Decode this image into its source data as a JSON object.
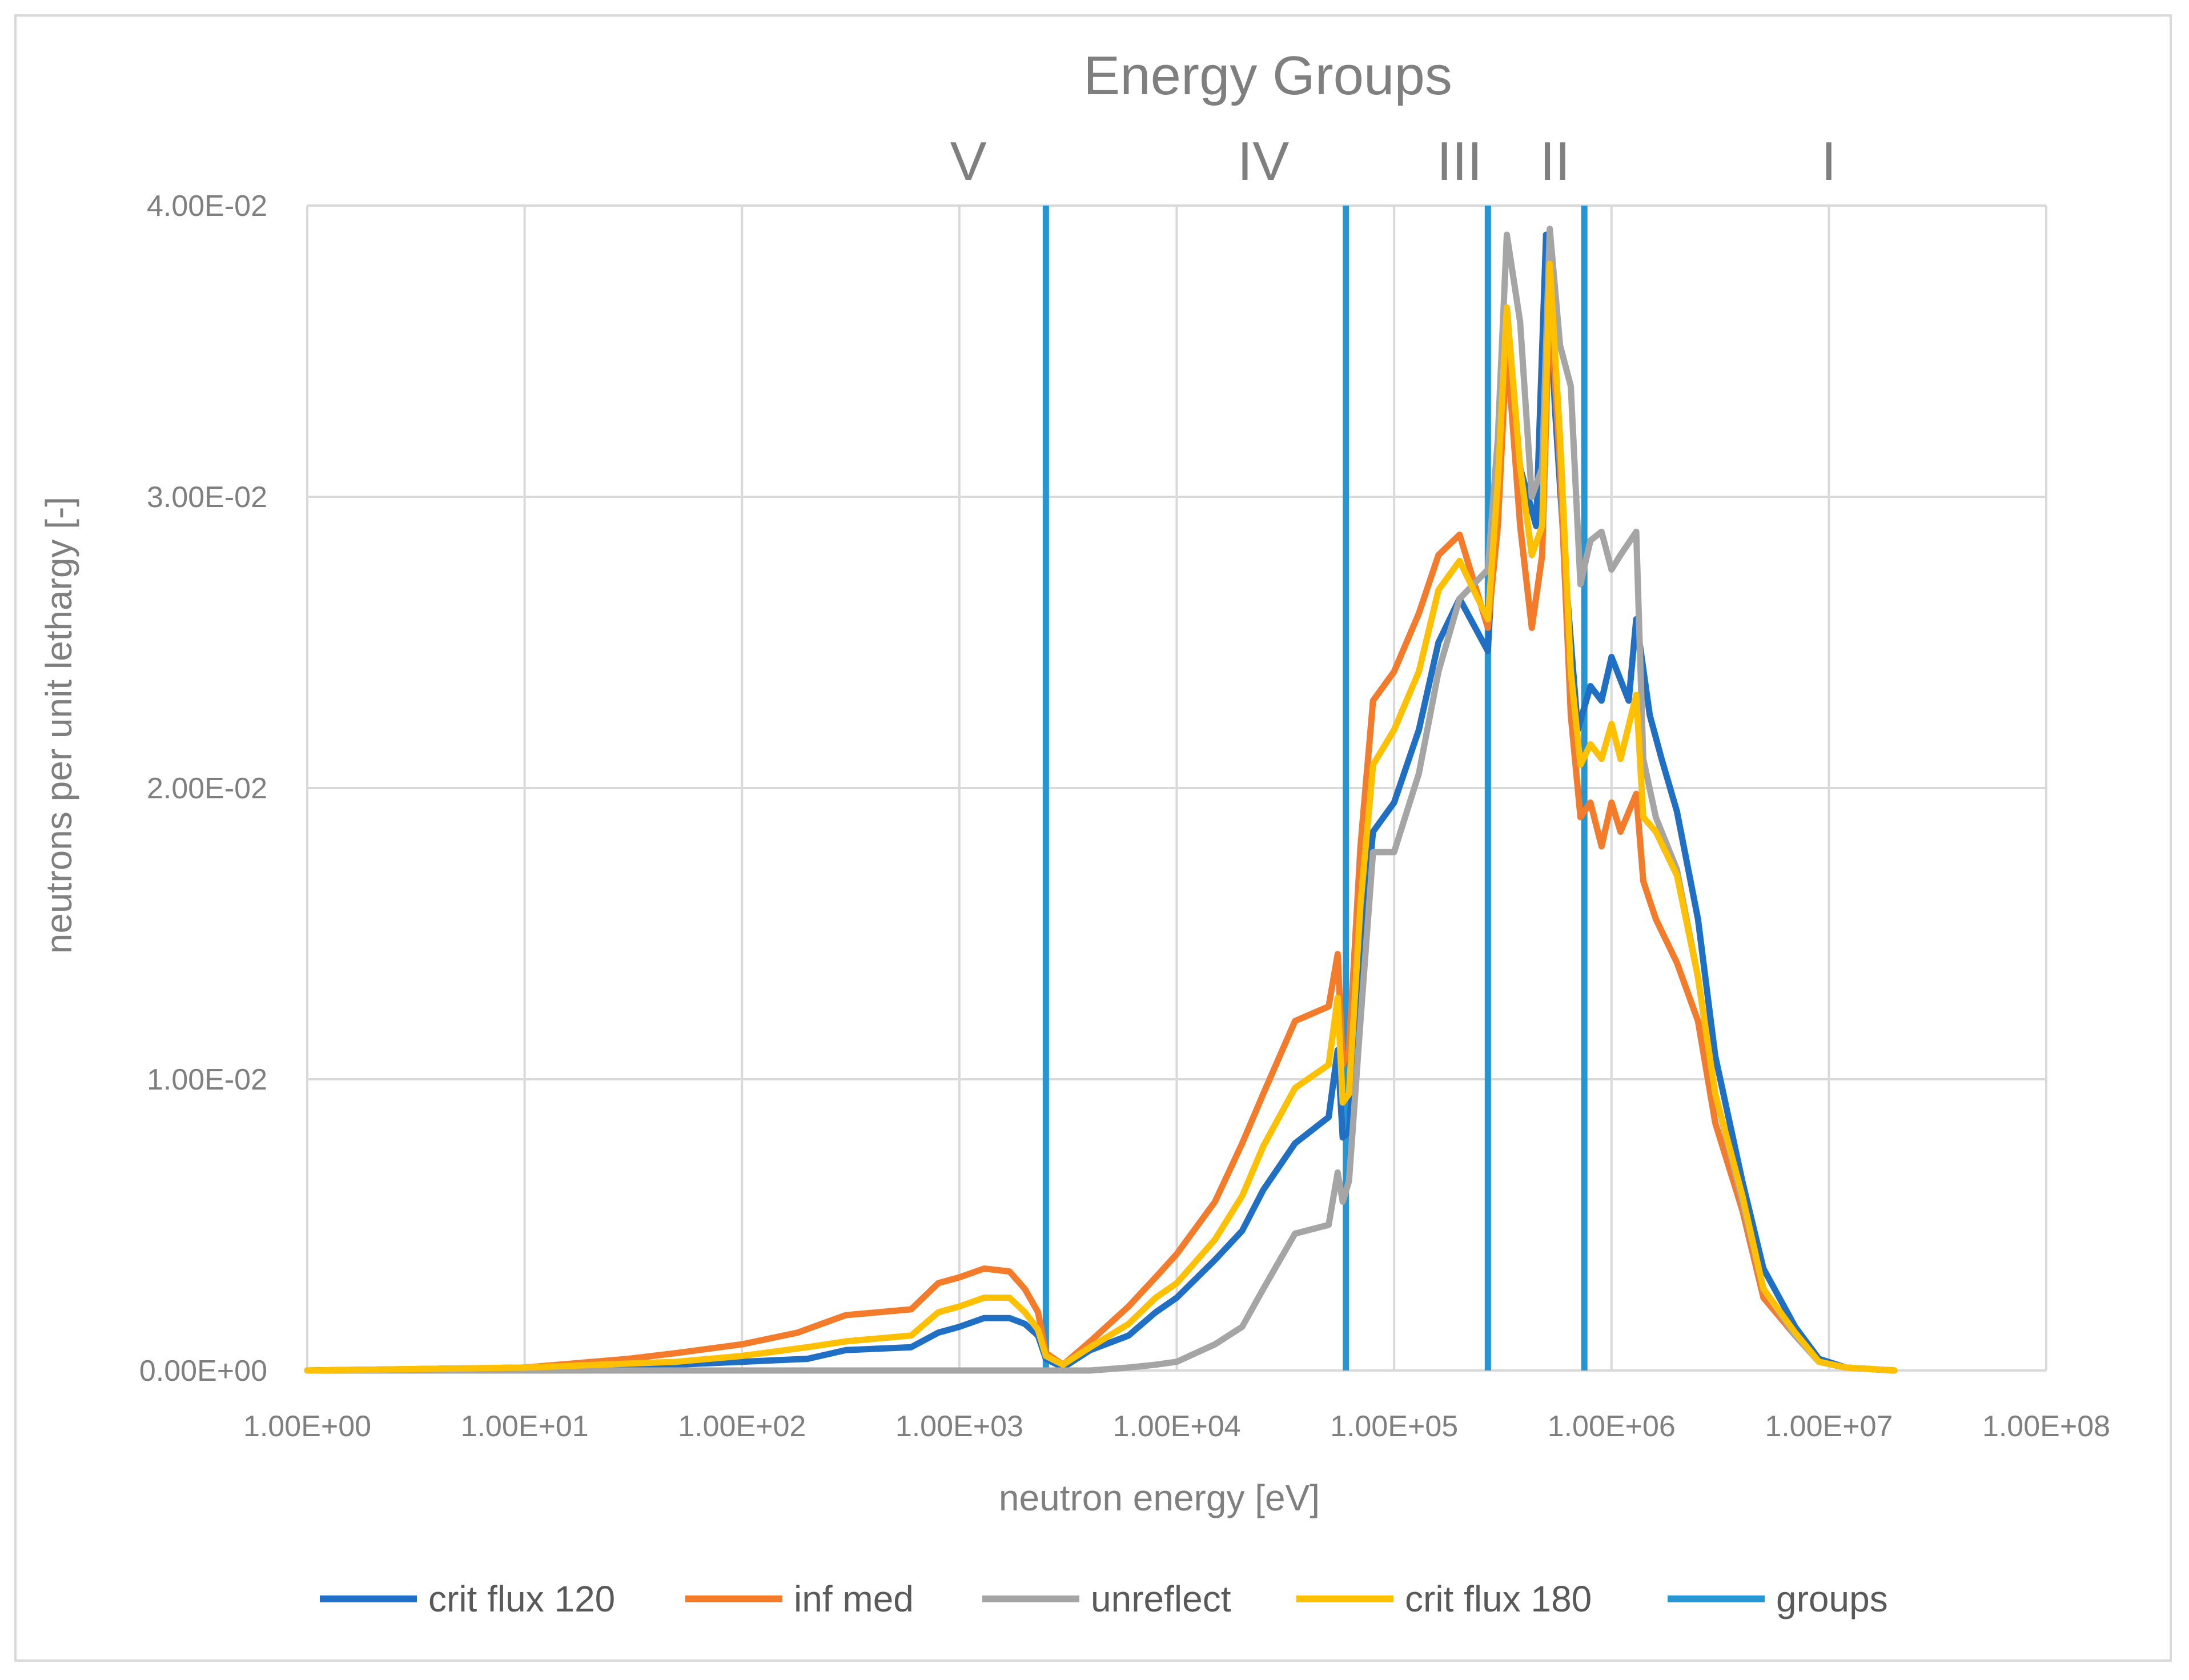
{
  "chart_data": {
    "type": "line",
    "title": "Energy Groups",
    "xlabel": "neutron energy [eV]",
    "ylabel": "neutrons per unit lethargy [-]",
    "xscale": "log",
    "xlim": [
      1,
      100000000
    ],
    "ylim": [
      0,
      0.04
    ],
    "grid": true,
    "legend_position": "bottom",
    "x_tick_labels": [
      "1.00E+00",
      "1.00E+01",
      "1.00E+02",
      "1.00E+03",
      "1.00E+04",
      "1.00E+05",
      "1.00E+06",
      "1.00E+07",
      "1.00E+08"
    ],
    "x_tick_values": [
      1,
      10,
      100,
      1000,
      10000,
      100000,
      1000000,
      10000000,
      100000000
    ],
    "y_tick_labels": [
      "0.00E+00",
      "1.00E-02",
      "2.00E-02",
      "3.00E-02",
      "4.00E-02"
    ],
    "y_tick_values": [
      0,
      0.01,
      0.02,
      0.03,
      0.04
    ],
    "group_labels": [
      {
        "label": "V",
        "center": 1100
      },
      {
        "label": "IV",
        "center": 25000
      },
      {
        "label": "III",
        "center": 200000
      },
      {
        "label": "II",
        "center": 550000
      },
      {
        "label": "I",
        "center": 10000000
      }
    ],
    "group_boundaries": [
      2500,
      60000,
      270000,
      750000
    ],
    "series": [
      {
        "name": "crit flux 120",
        "color": "#1f6fc4",
        "points": [
          [
            1,
            0
          ],
          [
            10,
            0.0001
          ],
          [
            50,
            0.0002
          ],
          [
            100,
            0.0003
          ],
          [
            200,
            0.0004
          ],
          [
            300,
            0.0007
          ],
          [
            600,
            0.0008
          ],
          [
            800,
            0.0013
          ],
          [
            1000,
            0.0015
          ],
          [
            1300,
            0.0018
          ],
          [
            1700,
            0.0018
          ],
          [
            2000,
            0.0016
          ],
          [
            2300,
            0.0012
          ],
          [
            2500,
            0.0004
          ],
          [
            3000,
            0.0001
          ],
          [
            4000,
            0.0007
          ],
          [
            6000,
            0.0012
          ],
          [
            8000,
            0.002
          ],
          [
            10000,
            0.0025
          ],
          [
            15000,
            0.0038
          ],
          [
            20000,
            0.0048
          ],
          [
            25000,
            0.0062
          ],
          [
            35000,
            0.0078
          ],
          [
            50000,
            0.0087
          ],
          [
            55000,
            0.011
          ],
          [
            58000,
            0.008
          ],
          [
            62000,
            0.0082
          ],
          [
            70000,
            0.014
          ],
          [
            80000,
            0.0185
          ],
          [
            100000,
            0.0195
          ],
          [
            130000,
            0.022
          ],
          [
            160000,
            0.025
          ],
          [
            200000,
            0.0265
          ],
          [
            270000,
            0.0247
          ],
          [
            300000,
            0.031
          ],
          [
            330000,
            0.0355
          ],
          [
            380000,
            0.031
          ],
          [
            450000,
            0.029
          ],
          [
            500000,
            0.039
          ],
          [
            550000,
            0.033
          ],
          [
            620000,
            0.027
          ],
          [
            700000,
            0.022
          ],
          [
            800000,
            0.0235
          ],
          [
            900000,
            0.023
          ],
          [
            1000000,
            0.0245
          ],
          [
            1200000,
            0.023
          ],
          [
            1300000,
            0.0258
          ],
          [
            1500000,
            0.0225
          ],
          [
            1700000,
            0.021
          ],
          [
            2000000,
            0.0192
          ],
          [
            2500000,
            0.0155
          ],
          [
            3000000,
            0.0108
          ],
          [
            4000000,
            0.0065
          ],
          [
            5000000,
            0.0035
          ],
          [
            7000000,
            0.0015
          ],
          [
            9000000,
            0.0004
          ],
          [
            12000000,
            0.0001
          ],
          [
            20000000,
            0
          ]
        ]
      },
      {
        "name": "inf med",
        "color": "#f47b2a",
        "points": [
          [
            1,
            0
          ],
          [
            10,
            0.0001
          ],
          [
            30,
            0.0004
          ],
          [
            50,
            0.0006
          ],
          [
            100,
            0.0009
          ],
          [
            180,
            0.0013
          ],
          [
            300,
            0.0019
          ],
          [
            600,
            0.0021
          ],
          [
            800,
            0.003
          ],
          [
            1000,
            0.0032
          ],
          [
            1300,
            0.0035
          ],
          [
            1700,
            0.0034
          ],
          [
            2000,
            0.0028
          ],
          [
            2300,
            0.002
          ],
          [
            2500,
            0.0006
          ],
          [
            3000,
            0.0002
          ],
          [
            4000,
            0.001
          ],
          [
            6000,
            0.0022
          ],
          [
            8000,
            0.0032
          ],
          [
            10000,
            0.004
          ],
          [
            15000,
            0.0058
          ],
          [
            20000,
            0.0078
          ],
          [
            25000,
            0.0095
          ],
          [
            35000,
            0.012
          ],
          [
            50000,
            0.0125
          ],
          [
            55000,
            0.0143
          ],
          [
            58000,
            0.0105
          ],
          [
            62000,
            0.011
          ],
          [
            70000,
            0.018
          ],
          [
            80000,
            0.023
          ],
          [
            100000,
            0.024
          ],
          [
            130000,
            0.026
          ],
          [
            160000,
            0.028
          ],
          [
            200000,
            0.0287
          ],
          [
            270000,
            0.0255
          ],
          [
            300000,
            0.029
          ],
          [
            330000,
            0.0352
          ],
          [
            380000,
            0.029
          ],
          [
            430000,
            0.0255
          ],
          [
            480000,
            0.028
          ],
          [
            520000,
            0.037
          ],
          [
            580000,
            0.031
          ],
          [
            650000,
            0.0225
          ],
          [
            720000,
            0.019
          ],
          [
            800000,
            0.0195
          ],
          [
            900000,
            0.018
          ],
          [
            1000000,
            0.0195
          ],
          [
            1100000,
            0.0185
          ],
          [
            1300000,
            0.0198
          ],
          [
            1400000,
            0.0168
          ],
          [
            1600000,
            0.0155
          ],
          [
            2000000,
            0.014
          ],
          [
            2500000,
            0.012
          ],
          [
            3000000,
            0.0085
          ],
          [
            4000000,
            0.0055
          ],
          [
            5000000,
            0.0025
          ],
          [
            7000000,
            0.0012
          ],
          [
            9000000,
            0.0003
          ],
          [
            12000000,
            0.0001
          ],
          [
            20000000,
            0
          ]
        ]
      },
      {
        "name": "unreflect",
        "color": "#a5a5a5",
        "points": [
          [
            1,
            0
          ],
          [
            100,
            0
          ],
          [
            1000,
            0
          ],
          [
            2500,
            0
          ],
          [
            3000,
            0
          ],
          [
            4000,
            0
          ],
          [
            6000,
            0.0001
          ],
          [
            8000,
            0.0002
          ],
          [
            10000,
            0.0003
          ],
          [
            15000,
            0.0009
          ],
          [
            20000,
            0.0015
          ],
          [
            25000,
            0.0028
          ],
          [
            35000,
            0.0047
          ],
          [
            50000,
            0.005
          ],
          [
            55000,
            0.0068
          ],
          [
            58000,
            0.0058
          ],
          [
            62000,
            0.0065
          ],
          [
            70000,
            0.012
          ],
          [
            80000,
            0.0178
          ],
          [
            100000,
            0.0178
          ],
          [
            130000,
            0.0205
          ],
          [
            160000,
            0.024
          ],
          [
            200000,
            0.0265
          ],
          [
            270000,
            0.0275
          ],
          [
            300000,
            0.032
          ],
          [
            330000,
            0.039
          ],
          [
            380000,
            0.036
          ],
          [
            430000,
            0.03
          ],
          [
            480000,
            0.031
          ],
          [
            520000,
            0.0392
          ],
          [
            580000,
            0.0352
          ],
          [
            650000,
            0.0338
          ],
          [
            720000,
            0.027
          ],
          [
            800000,
            0.0285
          ],
          [
            900000,
            0.0288
          ],
          [
            1000000,
            0.0275
          ],
          [
            1100000,
            0.028
          ],
          [
            1300000,
            0.0288
          ],
          [
            1400000,
            0.021
          ],
          [
            1600000,
            0.019
          ],
          [
            2000000,
            0.0172
          ],
          [
            2500000,
            0.0135
          ],
          [
            3000000,
            0.0095
          ],
          [
            4000000,
            0.0058
          ],
          [
            5000000,
            0.0028
          ],
          [
            7000000,
            0.0012
          ],
          [
            9000000,
            0.0003
          ],
          [
            12000000,
            0.0001
          ],
          [
            20000000,
            0
          ]
        ]
      },
      {
        "name": "crit flux 180",
        "color": "#ffc000",
        "points": [
          [
            1,
            0
          ],
          [
            10,
            0.0001
          ],
          [
            50,
            0.0003
          ],
          [
            100,
            0.0005
          ],
          [
            200,
            0.0008
          ],
          [
            300,
            0.001
          ],
          [
            600,
            0.0012
          ],
          [
            800,
            0.002
          ],
          [
            1000,
            0.0022
          ],
          [
            1300,
            0.0025
          ],
          [
            1700,
            0.0025
          ],
          [
            2000,
            0.002
          ],
          [
            2300,
            0.0014
          ],
          [
            2500,
            0.0005
          ],
          [
            3000,
            0.0002
          ],
          [
            4000,
            0.0008
          ],
          [
            6000,
            0.0016
          ],
          [
            8000,
            0.0025
          ],
          [
            10000,
            0.003
          ],
          [
            15000,
            0.0045
          ],
          [
            20000,
            0.006
          ],
          [
            25000,
            0.0077
          ],
          [
            35000,
            0.0097
          ],
          [
            50000,
            0.0105
          ],
          [
            55000,
            0.0128
          ],
          [
            58000,
            0.0092
          ],
          [
            62000,
            0.0095
          ],
          [
            70000,
            0.016
          ],
          [
            80000,
            0.0208
          ],
          [
            100000,
            0.022
          ],
          [
            130000,
            0.024
          ],
          [
            160000,
            0.0268
          ],
          [
            200000,
            0.0278
          ],
          [
            270000,
            0.0258
          ],
          [
            300000,
            0.0305
          ],
          [
            330000,
            0.0365
          ],
          [
            380000,
            0.031
          ],
          [
            430000,
            0.028
          ],
          [
            480000,
            0.029
          ],
          [
            520000,
            0.038
          ],
          [
            580000,
            0.032
          ],
          [
            650000,
            0.024
          ],
          [
            720000,
            0.0208
          ],
          [
            800000,
            0.0215
          ],
          [
            900000,
            0.021
          ],
          [
            1000000,
            0.0222
          ],
          [
            1100000,
            0.021
          ],
          [
            1300000,
            0.0232
          ],
          [
            1400000,
            0.019
          ],
          [
            1600000,
            0.0185
          ],
          [
            2000000,
            0.017
          ],
          [
            2500000,
            0.0135
          ],
          [
            3000000,
            0.0095
          ],
          [
            4000000,
            0.006
          ],
          [
            5000000,
            0.0028
          ],
          [
            7000000,
            0.0013
          ],
          [
            9000000,
            0.0003
          ],
          [
            12000000,
            0.0001
          ],
          [
            20000000,
            0
          ]
        ]
      },
      {
        "name": "groups",
        "color": "#2596d2",
        "points": []
      }
    ]
  }
}
